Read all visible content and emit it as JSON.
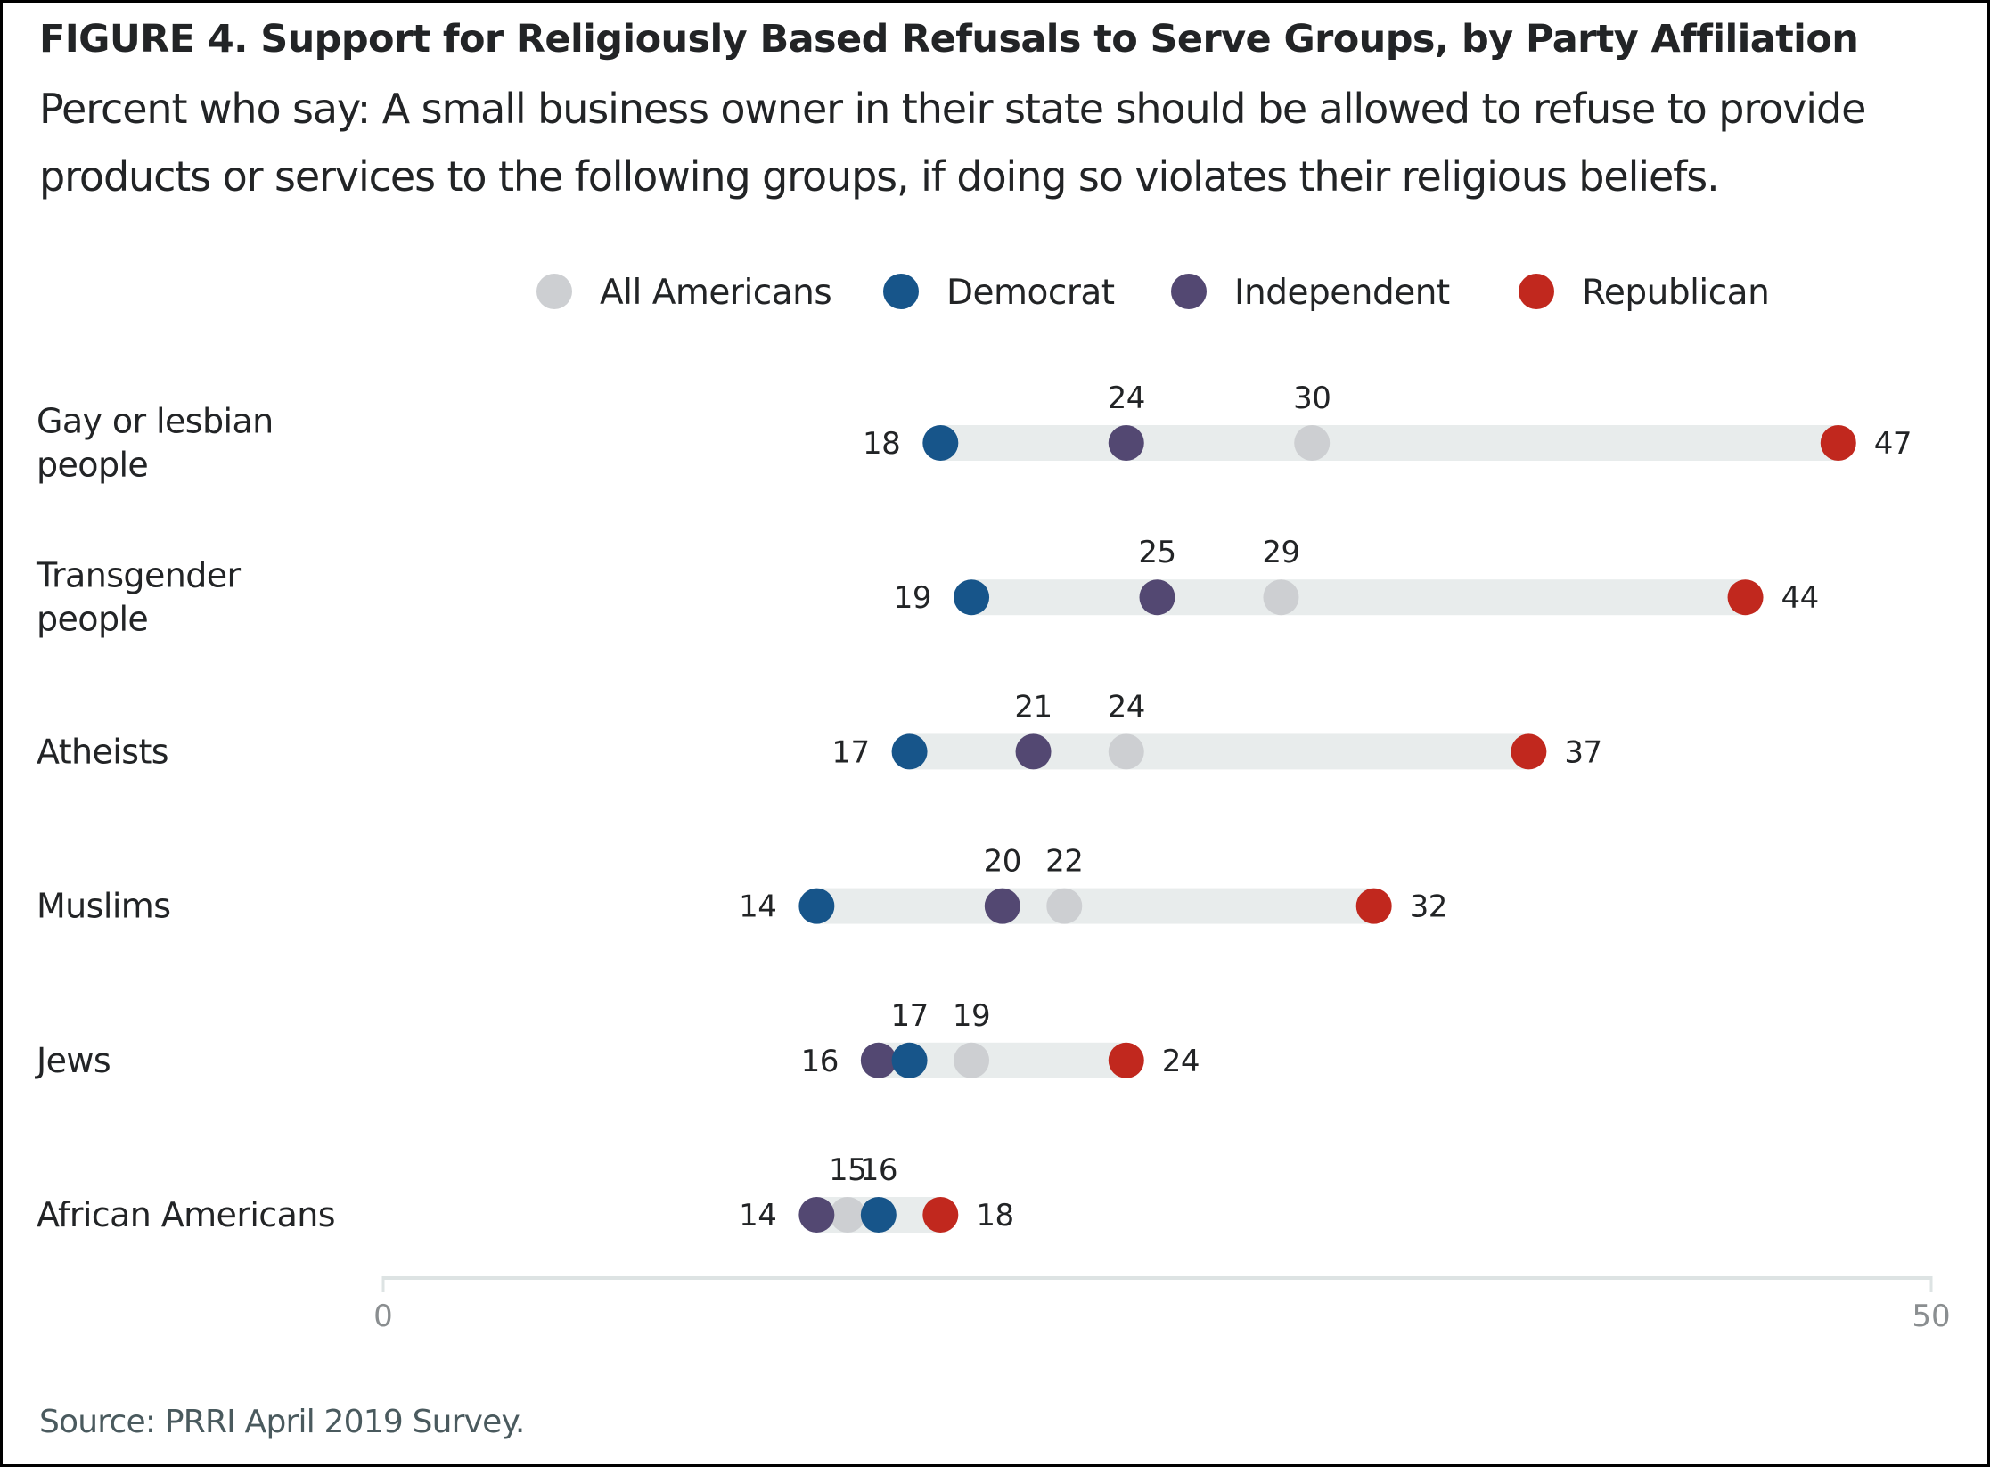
{
  "header": {
    "title": "FIGURE 4. Support for Religiously Based Refusals to Serve Groups, by Party Affiliation",
    "subtitle_lines": [
      "Percent who say: A small business owner in their state should be allowed to refuse to provide",
      "products or services to the following groups, if doing so violates their religious beliefs."
    ]
  },
  "footer": {
    "source": "Source: PRRI April 2019 Survey."
  },
  "chart_data": {
    "type": "dot-range",
    "title": "FIGURE 4. Support for Religiously Based Refusals to Serve Groups, by Party Affiliation",
    "subtitle": "Percent who say: A small business owner in their state should be allowed to refuse to provide products or services to the following groups, if doing so violates their religious beliefs.",
    "xlabel": "",
    "ylabel": "",
    "xlim": [
      0,
      50
    ],
    "x_ticks": [
      0,
      50
    ],
    "grid": false,
    "legend_position": "top-center",
    "categories": [
      [
        "Gay or lesbian",
        "people"
      ],
      [
        "Transgender",
        "people"
      ],
      [
        "Atheists"
      ],
      [
        "Muslims"
      ],
      [
        "Jews"
      ],
      [
        "African Americans"
      ]
    ],
    "series": [
      {
        "name": "All Americans",
        "key": "all",
        "color": "#cdcfd2",
        "values": [
          30,
          29,
          24,
          22,
          19,
          15
        ]
      },
      {
        "name": "Democrat",
        "key": "dem",
        "color": "#17558a",
        "values": [
          18,
          19,
          17,
          14,
          17,
          16
        ]
      },
      {
        "name": "Independent",
        "key": "ind",
        "color": "#534872",
        "values": [
          24,
          25,
          21,
          20,
          16,
          14
        ]
      },
      {
        "name": "Republican",
        "key": "rep",
        "color": "#c1281e",
        "values": [
          47,
          44,
          37,
          32,
          24,
          18
        ]
      }
    ],
    "range_bar_color": "#e8ecec",
    "axis_color": "#dde3e3",
    "source": "Source: PRRI April 2019 Survey."
  }
}
